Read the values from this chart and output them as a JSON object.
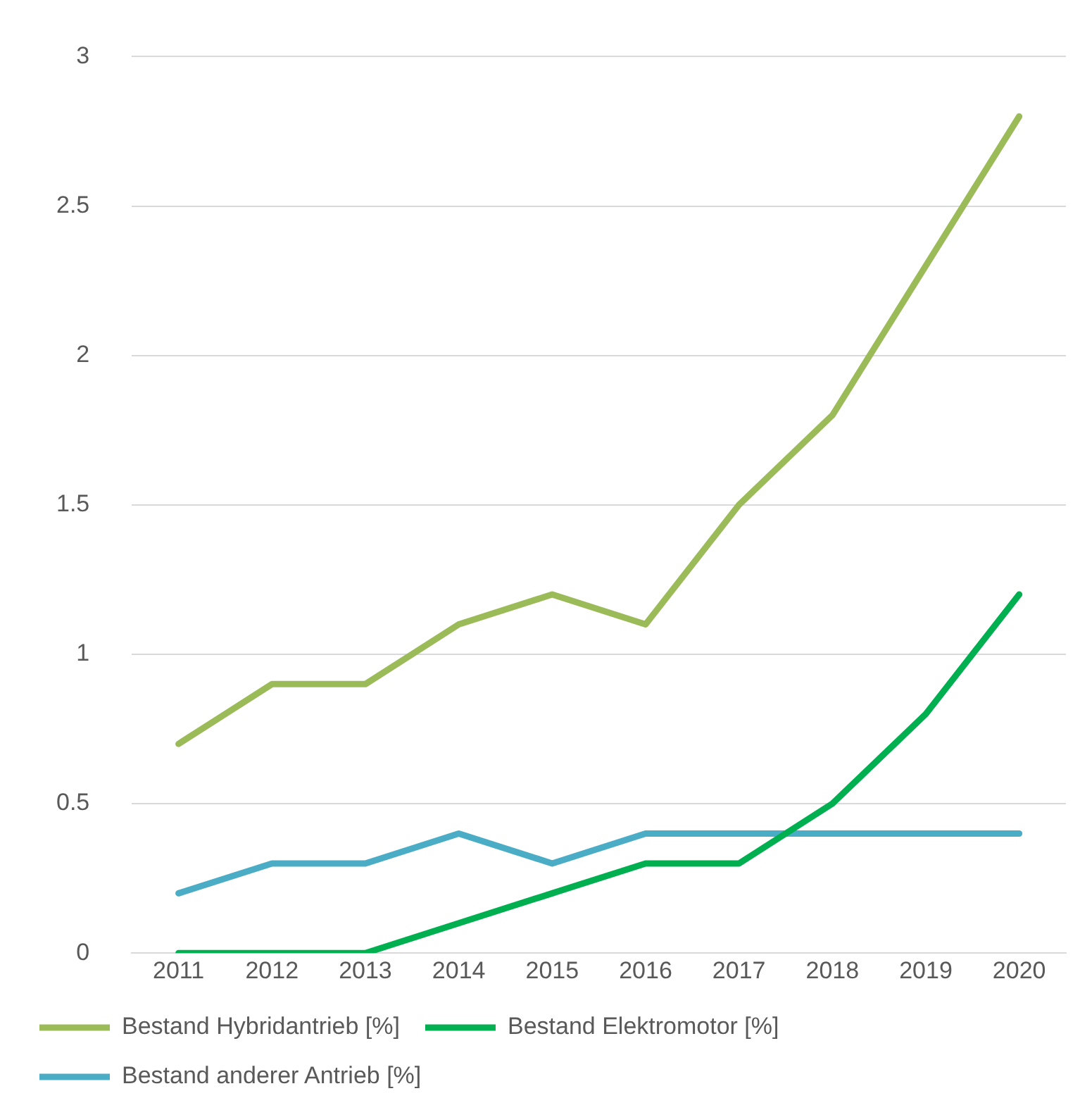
{
  "chart_data": {
    "type": "line",
    "categories": [
      "2011",
      "2012",
      "2013",
      "2014",
      "2015",
      "2016",
      "2017",
      "2018",
      "2019",
      "2020"
    ],
    "series": [
      {
        "name": "Bestand Hybridantrieb [%]",
        "color": "#9bbb59",
        "values": [
          0.7,
          0.9,
          0.9,
          1.1,
          1.2,
          1.1,
          1.5,
          1.8,
          2.3,
          2.8
        ]
      },
      {
        "name": "Bestand Elektromotor [%]",
        "color": "#00b050",
        "values": [
          0,
          0,
          0,
          0.1,
          0.2,
          0.3,
          0.3,
          0.5,
          0.8,
          1.2
        ]
      },
      {
        "name": "Bestand anderer Antrieb [%]",
        "color": "#4bacc6",
        "values": [
          0.2,
          0.3,
          0.3,
          0.4,
          0.3,
          0.4,
          0.4,
          0.4,
          0.4,
          0.4
        ]
      }
    ],
    "ylim": [
      0,
      3
    ],
    "yticks": [
      0,
      0.5,
      1,
      1.5,
      2,
      2.5,
      3
    ],
    "grid": "y",
    "legend": "bottom",
    "marker": "none",
    "line_style": "solid"
  }
}
